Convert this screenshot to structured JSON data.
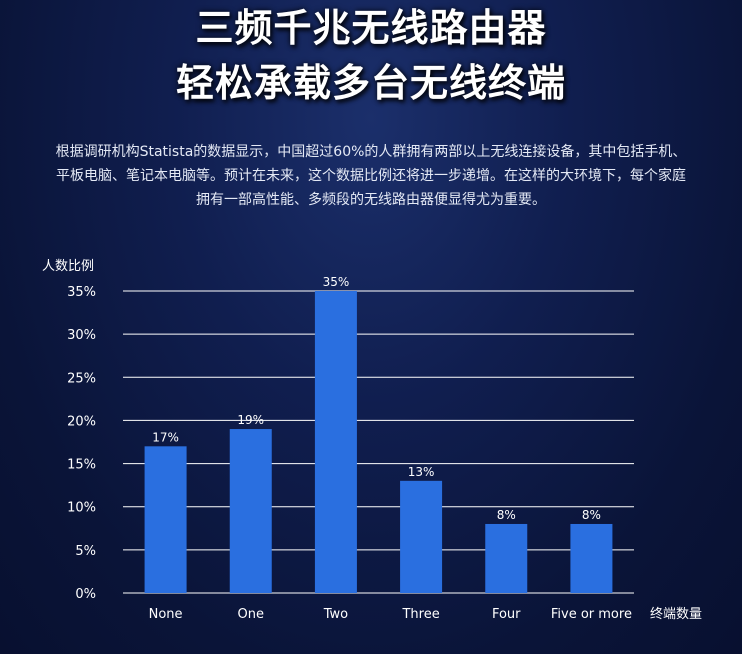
{
  "headline": {
    "line1": "三频千兆无线路由器",
    "line2": "轻松承载多台无线终端"
  },
  "intro": {
    "line1": "根据调研机构Statista的数据显示，中国超过60%的人群拥有两部以上无线连接设备，其中包括手机、",
    "line2": "平板电脑、笔记本电脑等。预计在未来，这个数据比例还将进一步递增。在这样的大环境下，每个家庭",
    "line3": "拥有一部高性能、多频段的无线路由器便显得尤为重要。"
  },
  "colors": {
    "bar": "#2a6fe0",
    "gridline": "#ffffff",
    "background": "#0d1a45"
  },
  "chart_data": {
    "type": "bar",
    "ylabel": "人数比例",
    "xlabel": "终端数量",
    "categories": [
      "None",
      "One",
      "Two",
      "Three",
      "Four",
      "Five or more"
    ],
    "values": [
      17,
      19,
      35,
      13,
      8,
      8
    ],
    "value_labels": [
      "17%",
      "19%",
      "35%",
      "13%",
      "8%",
      "8%"
    ],
    "ylim": [
      0,
      35
    ],
    "yticks": [
      0,
      5,
      10,
      15,
      20,
      25,
      30,
      35
    ],
    "ytick_labels": [
      "0%",
      "5%",
      "10%",
      "15%",
      "20%",
      "25%",
      "30%",
      "35%"
    ],
    "grid": true,
    "legend": "none"
  }
}
